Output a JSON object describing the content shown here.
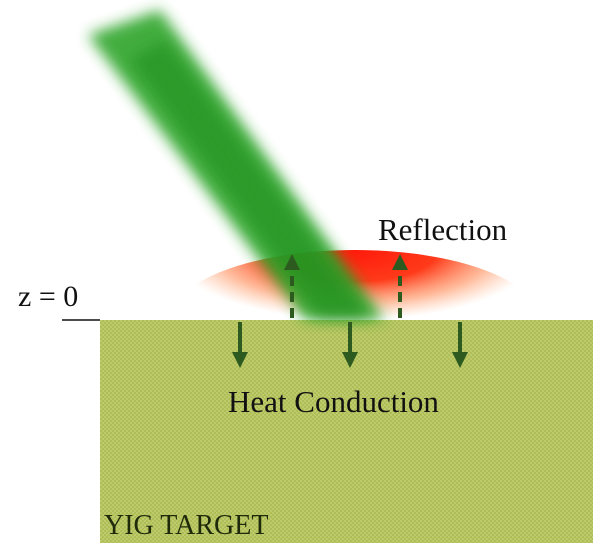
{
  "labels": {
    "reflection": "Reflection",
    "z_label": "z = 0",
    "heat_conduction": "Heat Conduction",
    "target": "YIG TARGET"
  }
}
